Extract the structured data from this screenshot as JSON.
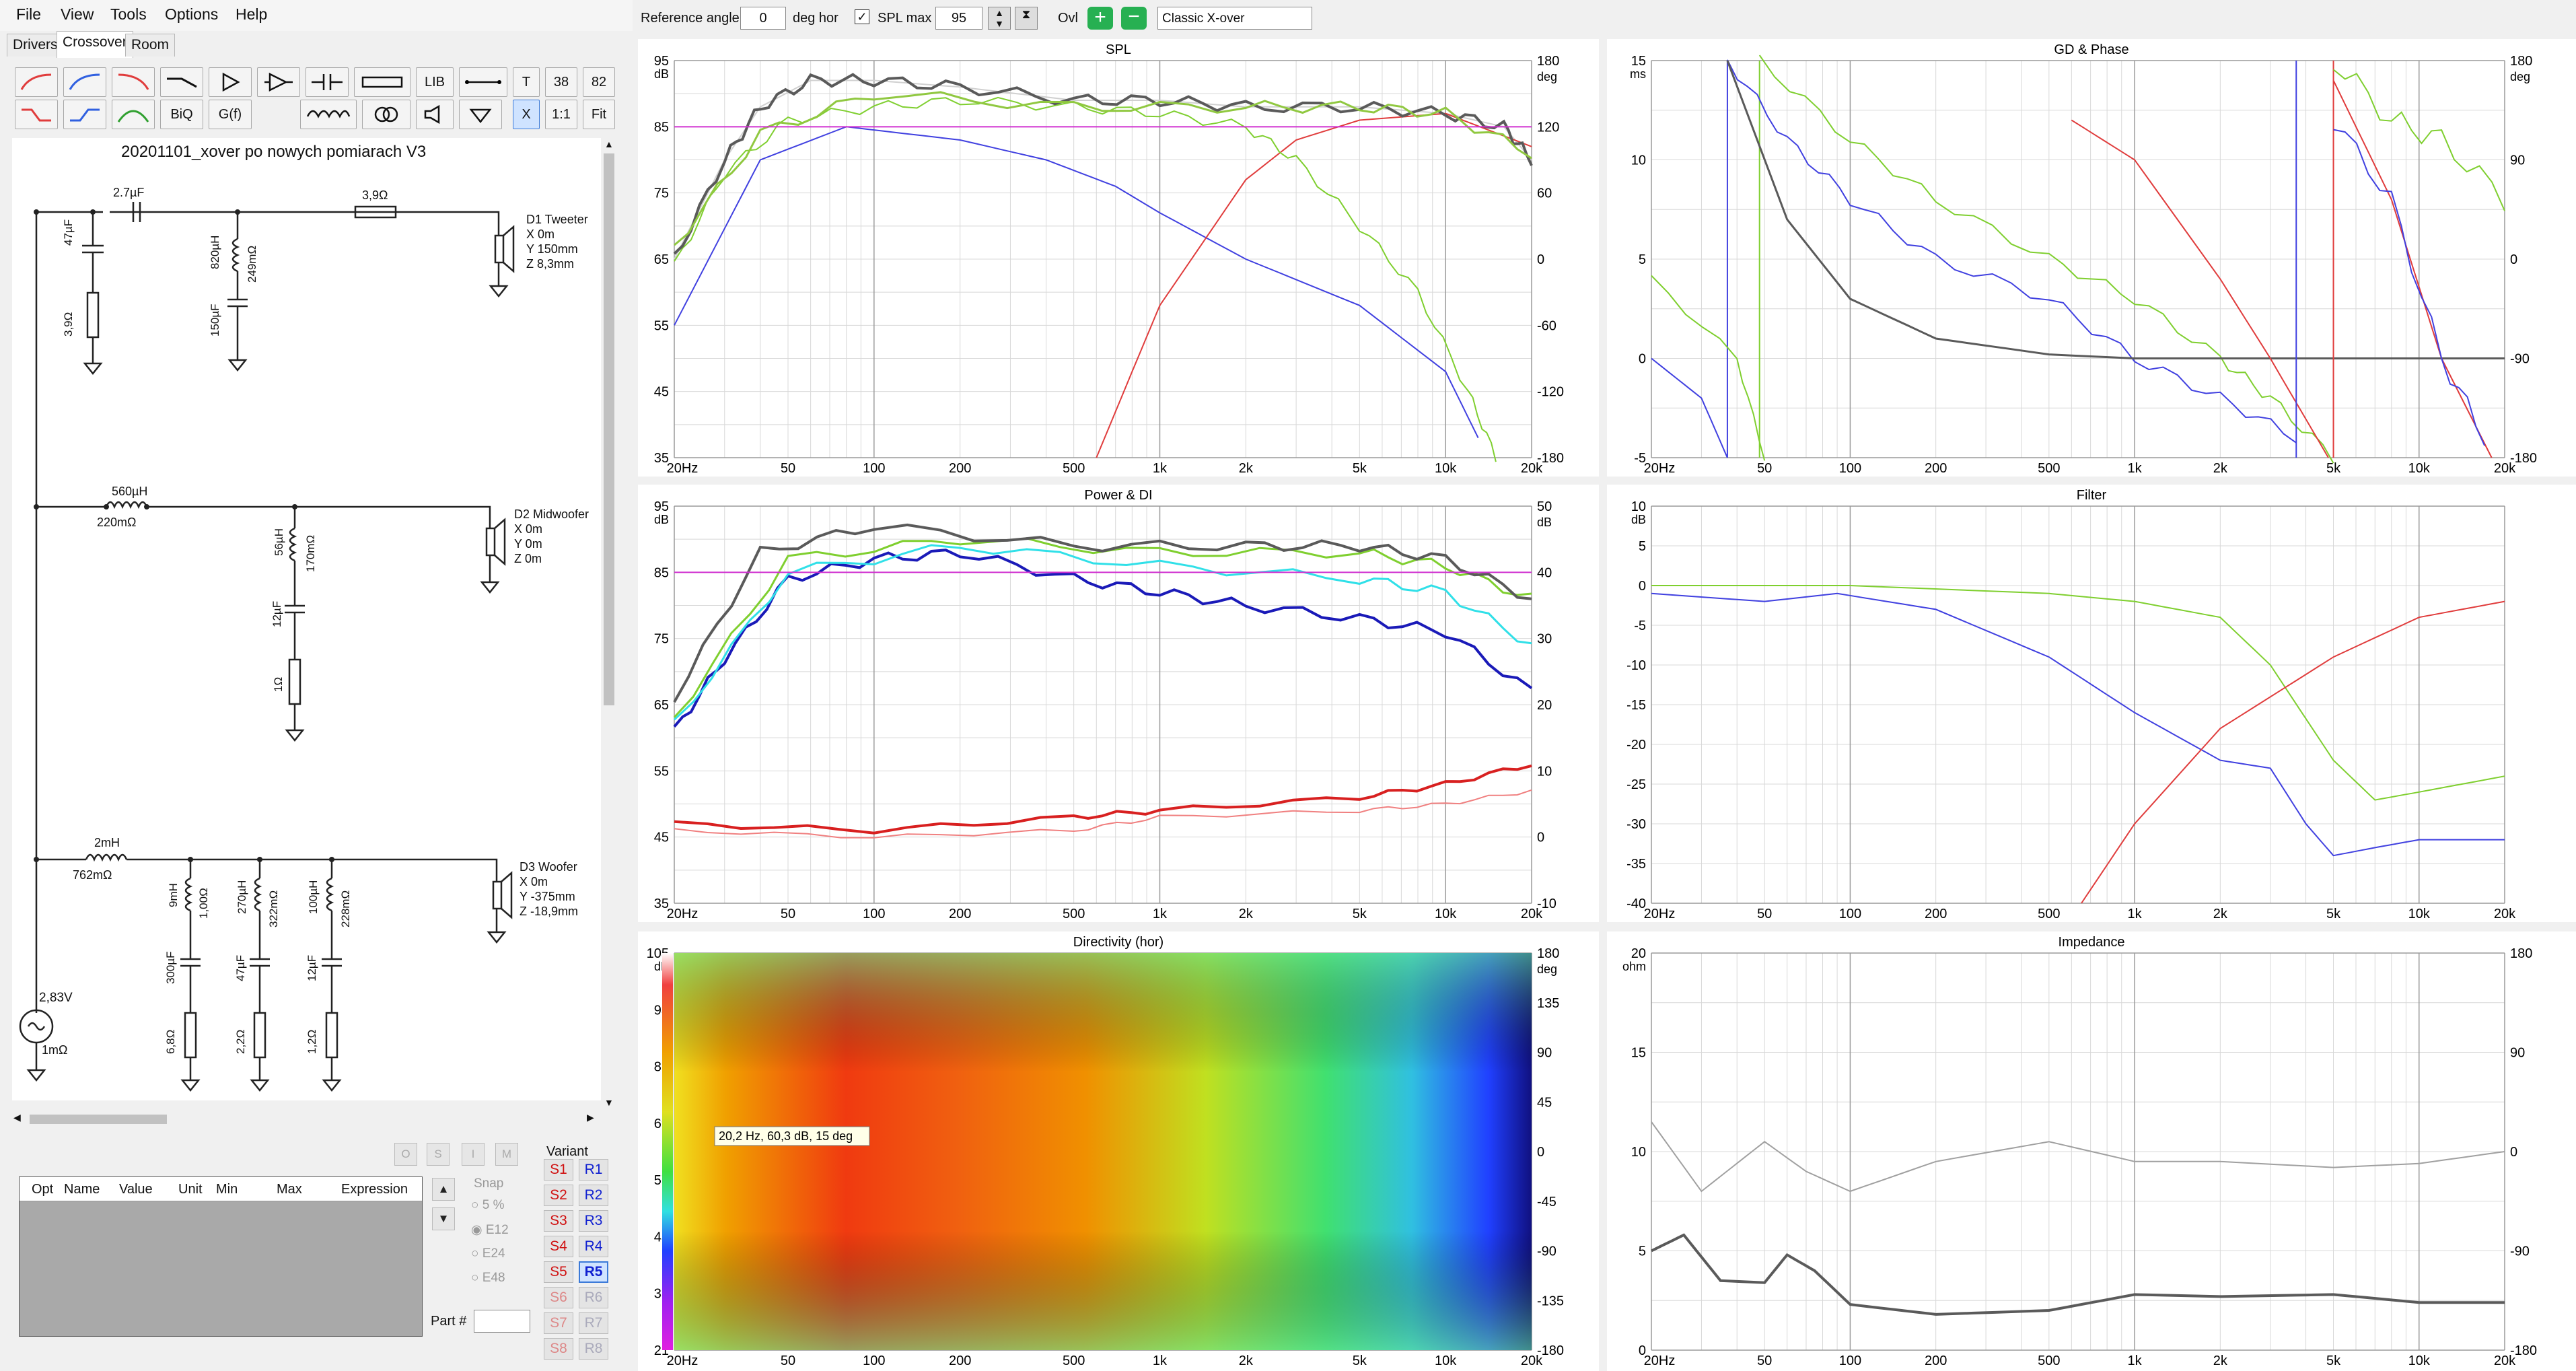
{
  "menu": {
    "file": "File",
    "view": "View",
    "tools": "Tools",
    "options": "Options",
    "help": "Help"
  },
  "tabs": [
    "Drivers",
    "Crossover",
    "Room"
  ],
  "toolbar": {
    "lib": "LIB",
    "biq": "BiQ",
    "gf": "G(f)",
    "t": "T",
    "n38": "38",
    "n82": "82",
    "x": "X",
    "r11": "1:1",
    "fit": "Fit"
  },
  "crossover": {
    "title": "20201101_xover po nowych pomiarach V3",
    "tweeter": {
      "c_series": "2.7µF",
      "r_series": "3,9Ω",
      "c_shunt": "47µF",
      "r_shunt": "3,9Ω",
      "l_shunt": "820µH",
      "l_shunt_r": "249mΩ",
      "c_shunt2": "150µF",
      "label": "D1 Tweeter",
      "x": "X 0m",
      "y": "Y 150mm",
      "z": "Z 8,3mm"
    },
    "mid": {
      "l_series": "560µH",
      "l_series_r": "220mΩ",
      "l_shunt": "56µH",
      "l_shunt_r": "170mΩ",
      "c_shunt": "12µF",
      "r_shunt": "1Ω",
      "label": "D2 Midwoofer",
      "x": "X 0m",
      "y": "Y 0m",
      "z": "Z 0m"
    },
    "woofer": {
      "l_series": "2mH",
      "l_series_r": "762mΩ",
      "l1": "9mH",
      "l1_r": "1,00Ω",
      "c1": "300µF",
      "r1": "6,8Ω",
      "l2": "270µH",
      "l2_r": "322mΩ",
      "c2": "47µF",
      "r2": "2,2Ω",
      "l3": "100µH",
      "l3_r": "228mΩ",
      "c3": "12µF",
      "r3": "1,2Ω",
      "label": "D3 Woofer",
      "x": "X 0m",
      "y": "Y -375mm",
      "z": "Z -18,9mm"
    },
    "source": {
      "v": "2,83V",
      "r": "1mΩ"
    }
  },
  "optimizer": {
    "cols": [
      "Opt",
      "Name",
      "Value",
      "Unit",
      "Min",
      "Max",
      "Expression"
    ],
    "small": [
      "O",
      "S",
      "I",
      "M"
    ],
    "snap_label": "Snap",
    "snap": [
      "5 %",
      "E12",
      "E24",
      "E48"
    ],
    "part_label": "Part #",
    "variant_label": "Variant",
    "variants_s": [
      "S1",
      "S2",
      "S3",
      "S4",
      "S5",
      "S6",
      "S7",
      "S8"
    ],
    "variants_r": [
      "R1",
      "R2",
      "R3",
      "R4",
      "R5",
      "R6",
      "R7",
      "R8"
    ]
  },
  "topbar": {
    "ref_label": "Reference angle",
    "ref_value": "0",
    "ref_unit": "deg hor",
    "spl_label": "SPL max",
    "spl_value": "95",
    "ovl_label": "Ovl",
    "preset": "Classic X-over"
  },
  "freq_ticks": [
    "20Hz",
    "50",
    "100",
    "200",
    "500",
    "1k",
    "2k",
    "5k",
    "10k",
    "20k"
  ],
  "spl": {
    "title": "SPL",
    "unit_left": "dB",
    "unit_right": "deg",
    "left": [
      "95",
      "85",
      "75",
      "65",
      "55",
      "45",
      "35"
    ],
    "right": [
      "180",
      "120",
      "60",
      "0",
      "-60",
      "-120",
      "-180"
    ]
  },
  "power": {
    "title": "Power & DI",
    "unit_left": "dB",
    "unit_right": "dB",
    "left": [
      "95",
      "85",
      "75",
      "65",
      "55",
      "45",
      "35"
    ],
    "right": [
      "50",
      "40",
      "30",
      "20",
      "10",
      "0",
      "-10"
    ]
  },
  "directivity": {
    "title": "Directivity (hor)",
    "unit_left": "dB",
    "unit_right": "deg",
    "left": [
      "105",
      "93",
      "81",
      "69",
      "57",
      "45",
      "33",
      "21"
    ],
    "right": [
      "180",
      "135",
      "90",
      "45",
      "0",
      "-45",
      "-90",
      "-135",
      "-180"
    ],
    "tooltip": "20,2 Hz, 60,3 dB, 15 deg"
  },
  "gd": {
    "title": "GD & Phase",
    "unit_left": "ms",
    "unit_right": "deg",
    "left": [
      "15",
      "10",
      "5",
      "0",
      "-5"
    ],
    "right": [
      "180",
      "90",
      "0",
      "-90",
      "-180"
    ]
  },
  "filter": {
    "title": "Filter",
    "unit_left": "dB",
    "left": [
      "10",
      "5",
      "0",
      "-5",
      "-10",
      "-15",
      "-20",
      "-25",
      "-30",
      "-35",
      "-40"
    ]
  },
  "impedance": {
    "title": "Impedance",
    "unit_left": "ohm",
    "left": [
      "20",
      "15",
      "10",
      "5",
      "0"
    ],
    "right": [
      "180",
      "90",
      "0",
      "-90",
      "-180"
    ]
  },
  "colors": {
    "grey": "#5a5a5a",
    "green": "#7fcf2f",
    "blue": "#4040e0",
    "red": "#e03c3c",
    "magenta": "#d030d0",
    "cyan": "#30e0e8"
  }
}
